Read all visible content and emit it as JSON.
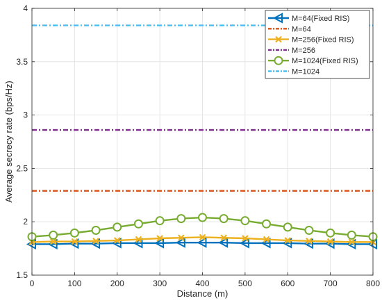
{
  "chart_data": {
    "type": "line",
    "title": "",
    "xlabel": "Distance (m)",
    "ylabel": "Average secrecy rate (bps/Hz)",
    "xlim": [
      0,
      800
    ],
    "ylim": [
      1.5,
      4
    ],
    "xticks": [
      0,
      100,
      200,
      300,
      400,
      500,
      600,
      700,
      800
    ],
    "yticks": [
      1.5,
      2,
      2.5,
      3,
      3.5,
      4
    ],
    "grid": true,
    "legend_position": "top-right",
    "x": [
      0,
      50,
      100,
      150,
      200,
      250,
      300,
      350,
      400,
      450,
      500,
      550,
      600,
      650,
      700,
      750,
      800
    ],
    "series": [
      {
        "name": "M=64(Fixed RIS)",
        "color": "#0072bd",
        "style": "solid",
        "marker": "triangle-left",
        "values": [
          1.79,
          1.79,
          1.795,
          1.795,
          1.8,
          1.8,
          1.8,
          1.805,
          1.805,
          1.805,
          1.8,
          1.8,
          1.8,
          1.795,
          1.795,
          1.79,
          1.79
        ]
      },
      {
        "name": "M=64",
        "color": "#d95319",
        "style": "dashdot",
        "marker": "none",
        "values": [
          2.29,
          2.29,
          2.29,
          2.29,
          2.29,
          2.29,
          2.29,
          2.29,
          2.29,
          2.29,
          2.29,
          2.29,
          2.29,
          2.29,
          2.29,
          2.29,
          2.29
        ]
      },
      {
        "name": "M=256(Fixed RIS)",
        "color": "#edb120",
        "style": "solid",
        "marker": "x",
        "values": [
          1.81,
          1.815,
          1.815,
          1.82,
          1.825,
          1.835,
          1.845,
          1.85,
          1.855,
          1.85,
          1.845,
          1.835,
          1.825,
          1.82,
          1.815,
          1.81,
          1.81
        ]
      },
      {
        "name": "M=256",
        "color": "#7e2f8e",
        "style": "dashdot",
        "marker": "none",
        "values": [
          2.86,
          2.86,
          2.86,
          2.86,
          2.86,
          2.86,
          2.86,
          2.86,
          2.86,
          2.86,
          2.86,
          2.86,
          2.86,
          2.86,
          2.86,
          2.86,
          2.86
        ]
      },
      {
        "name": "M=1024(Fixed RIS)",
        "color": "#77ac30",
        "style": "solid",
        "marker": "circle",
        "values": [
          1.86,
          1.875,
          1.895,
          1.92,
          1.95,
          1.98,
          2.01,
          2.03,
          2.04,
          2.03,
          2.01,
          1.98,
          1.95,
          1.92,
          1.895,
          1.875,
          1.86
        ]
      },
      {
        "name": "M=1024",
        "color": "#4dbeee",
        "style": "dashdot",
        "marker": "none",
        "values": [
          3.84,
          3.84,
          3.84,
          3.84,
          3.84,
          3.84,
          3.84,
          3.84,
          3.84,
          3.84,
          3.84,
          3.84,
          3.84,
          3.84,
          3.84,
          3.84,
          3.84
        ]
      }
    ]
  }
}
